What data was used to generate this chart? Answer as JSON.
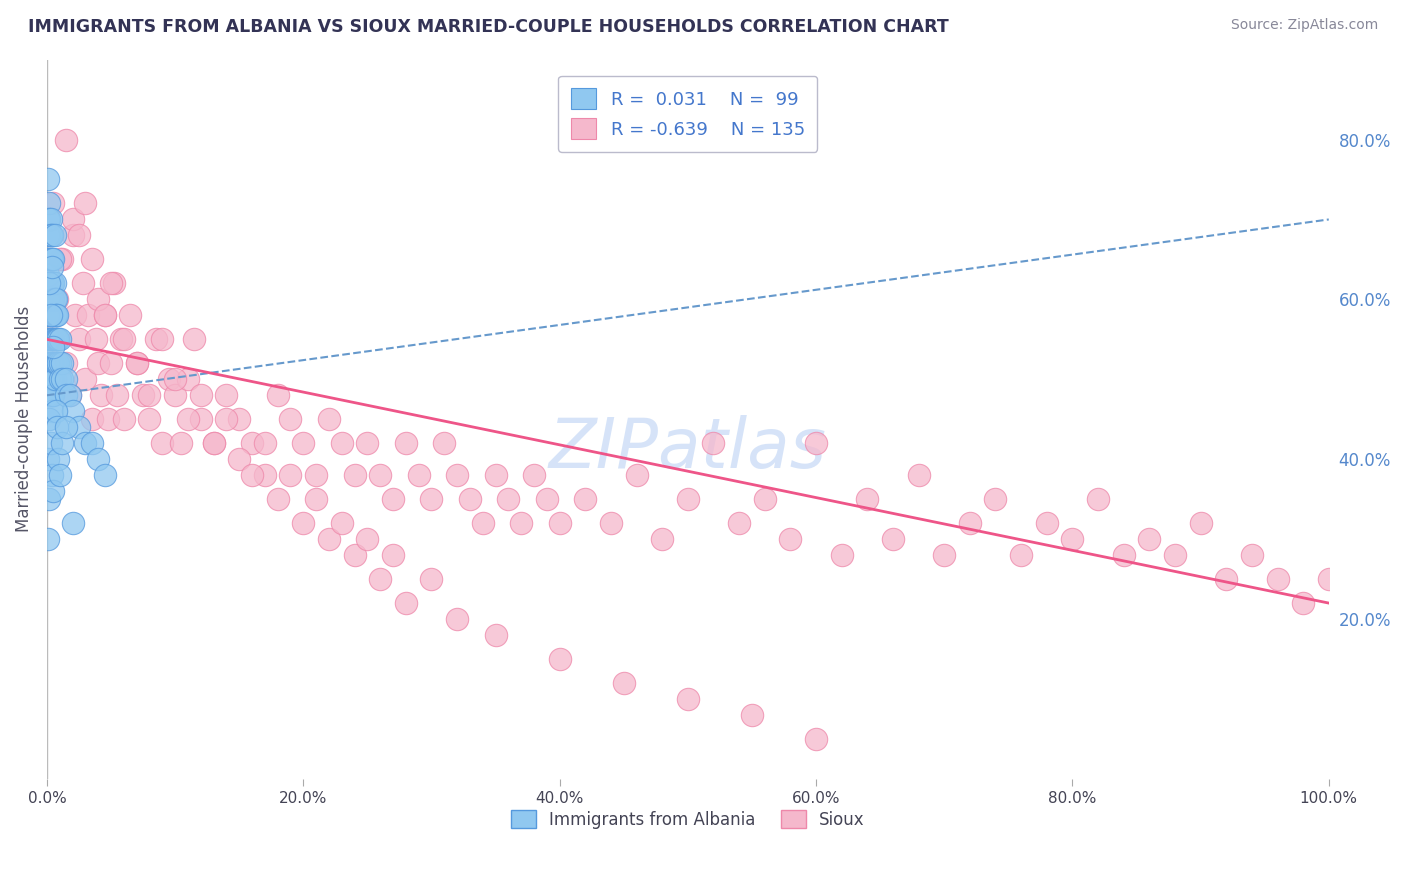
{
  "title": "IMMIGRANTS FROM ALBANIA VS SIOUX MARRIED-COUPLE HOUSEHOLDS CORRELATION CHART",
  "source": "Source: ZipAtlas.com",
  "ylabel": "Married-couple Households",
  "xlim": [
    0,
    1.0
  ],
  "ylim": [
    0,
    0.9
  ],
  "xticks": [
    0,
    0.2,
    0.4,
    0.6,
    0.8,
    1.0
  ],
  "xtick_labels": [
    "0.0%",
    "20.0%",
    "40.0%",
    "60.0%",
    "80.0%",
    "100.0%"
  ],
  "yticks_right": [
    0.2,
    0.4,
    0.6,
    0.8
  ],
  "ytick_labels_right": [
    "20.0%",
    "40.0%",
    "60.0%",
    "80.0%"
  ],
  "blue_color": "#90C8F0",
  "pink_color": "#F5B8CC",
  "blue_edge_color": "#5599DD",
  "pink_edge_color": "#EE88AA",
  "blue_line_color": "#6699CC",
  "pink_line_color": "#EE5588",
  "background_color": "#FFFFFF",
  "grid_color": "#CCCCCC",
  "title_color": "#333355",
  "axis_label_color": "#555566",
  "tick_color_right": "#5588CC",
  "legend_text_color": "#4477CC",
  "watermark_color": "#99BBEE",
  "albania_x": [
    0.001,
    0.001,
    0.001,
    0.001,
    0.001,
    0.001,
    0.001,
    0.001,
    0.001,
    0.001,
    0.002,
    0.002,
    0.002,
    0.002,
    0.002,
    0.002,
    0.002,
    0.002,
    0.002,
    0.002,
    0.003,
    0.003,
    0.003,
    0.003,
    0.003,
    0.003,
    0.003,
    0.003,
    0.003,
    0.003,
    0.004,
    0.004,
    0.004,
    0.004,
    0.004,
    0.004,
    0.004,
    0.004,
    0.004,
    0.004,
    0.005,
    0.005,
    0.005,
    0.005,
    0.005,
    0.005,
    0.005,
    0.005,
    0.006,
    0.006,
    0.006,
    0.006,
    0.006,
    0.006,
    0.007,
    0.007,
    0.007,
    0.007,
    0.008,
    0.008,
    0.008,
    0.009,
    0.009,
    0.01,
    0.01,
    0.01,
    0.012,
    0.012,
    0.015,
    0.015,
    0.018,
    0.02,
    0.025,
    0.03,
    0.035,
    0.04,
    0.045,
    0.001,
    0.001,
    0.001,
    0.002,
    0.002,
    0.002,
    0.003,
    0.003,
    0.004,
    0.004,
    0.005,
    0.005,
    0.006,
    0.007,
    0.008,
    0.009,
    0.01,
    0.012,
    0.015,
    0.02
  ],
  "albania_y": [
    0.7,
    0.68,
    0.65,
    0.63,
    0.6,
    0.58,
    0.55,
    0.52,
    0.5,
    0.48,
    0.72,
    0.7,
    0.68,
    0.65,
    0.62,
    0.6,
    0.58,
    0.55,
    0.52,
    0.48,
    0.7,
    0.68,
    0.65,
    0.62,
    0.6,
    0.58,
    0.55,
    0.52,
    0.5,
    0.48,
    0.68,
    0.65,
    0.62,
    0.6,
    0.58,
    0.55,
    0.52,
    0.5,
    0.48,
    0.46,
    0.65,
    0.62,
    0.6,
    0.58,
    0.55,
    0.52,
    0.5,
    0.48,
    0.62,
    0.6,
    0.58,
    0.55,
    0.52,
    0.5,
    0.6,
    0.58,
    0.55,
    0.52,
    0.58,
    0.55,
    0.52,
    0.55,
    0.52,
    0.55,
    0.52,
    0.5,
    0.52,
    0.5,
    0.5,
    0.48,
    0.48,
    0.46,
    0.44,
    0.42,
    0.42,
    0.4,
    0.38,
    0.3,
    0.4,
    0.75,
    0.45,
    0.35,
    0.62,
    0.42,
    0.58,
    0.38,
    0.64,
    0.36,
    0.54,
    0.68,
    0.46,
    0.44,
    0.4,
    0.38,
    0.42,
    0.44,
    0.32
  ],
  "sioux_x": [
    0.002,
    0.003,
    0.005,
    0.008,
    0.01,
    0.012,
    0.015,
    0.018,
    0.02,
    0.022,
    0.025,
    0.028,
    0.03,
    0.032,
    0.035,
    0.038,
    0.04,
    0.042,
    0.045,
    0.048,
    0.05,
    0.052,
    0.055,
    0.058,
    0.06,
    0.065,
    0.07,
    0.075,
    0.08,
    0.085,
    0.09,
    0.095,
    0.1,
    0.105,
    0.11,
    0.115,
    0.12,
    0.13,
    0.14,
    0.15,
    0.16,
    0.17,
    0.18,
    0.19,
    0.2,
    0.21,
    0.22,
    0.23,
    0.24,
    0.25,
    0.26,
    0.27,
    0.28,
    0.29,
    0.3,
    0.31,
    0.32,
    0.33,
    0.34,
    0.35,
    0.36,
    0.37,
    0.38,
    0.39,
    0.4,
    0.42,
    0.44,
    0.46,
    0.48,
    0.5,
    0.52,
    0.54,
    0.56,
    0.58,
    0.6,
    0.62,
    0.64,
    0.66,
    0.68,
    0.7,
    0.72,
    0.74,
    0.76,
    0.78,
    0.8,
    0.82,
    0.84,
    0.86,
    0.88,
    0.9,
    0.92,
    0.94,
    0.96,
    0.98,
    1.0,
    0.005,
    0.01,
    0.015,
    0.02,
    0.025,
    0.03,
    0.035,
    0.04,
    0.045,
    0.05,
    0.06,
    0.07,
    0.08,
    0.09,
    0.1,
    0.11,
    0.12,
    0.13,
    0.14,
    0.15,
    0.16,
    0.17,
    0.18,
    0.19,
    0.2,
    0.21,
    0.22,
    0.23,
    0.24,
    0.25,
    0.26,
    0.27,
    0.28,
    0.3,
    0.32,
    0.35,
    0.4,
    0.45,
    0.5,
    0.55,
    0.6
  ],
  "sioux_y": [
    0.58,
    0.62,
    0.55,
    0.6,
    0.5,
    0.65,
    0.52,
    0.48,
    0.68,
    0.58,
    0.55,
    0.62,
    0.5,
    0.58,
    0.45,
    0.55,
    0.52,
    0.48,
    0.58,
    0.45,
    0.52,
    0.62,
    0.48,
    0.55,
    0.45,
    0.58,
    0.52,
    0.48,
    0.45,
    0.55,
    0.42,
    0.5,
    0.48,
    0.42,
    0.5,
    0.55,
    0.45,
    0.42,
    0.48,
    0.45,
    0.42,
    0.38,
    0.48,
    0.45,
    0.42,
    0.38,
    0.45,
    0.42,
    0.38,
    0.42,
    0.38,
    0.35,
    0.42,
    0.38,
    0.35,
    0.42,
    0.38,
    0.35,
    0.32,
    0.38,
    0.35,
    0.32,
    0.38,
    0.35,
    0.32,
    0.35,
    0.32,
    0.38,
    0.3,
    0.35,
    0.42,
    0.32,
    0.35,
    0.3,
    0.42,
    0.28,
    0.35,
    0.3,
    0.38,
    0.28,
    0.32,
    0.35,
    0.28,
    0.32,
    0.3,
    0.35,
    0.28,
    0.3,
    0.28,
    0.32,
    0.25,
    0.28,
    0.25,
    0.22,
    0.25,
    0.72,
    0.65,
    0.8,
    0.7,
    0.68,
    0.72,
    0.65,
    0.6,
    0.58,
    0.62,
    0.55,
    0.52,
    0.48,
    0.55,
    0.5,
    0.45,
    0.48,
    0.42,
    0.45,
    0.4,
    0.38,
    0.42,
    0.35,
    0.38,
    0.32,
    0.35,
    0.3,
    0.32,
    0.28,
    0.3,
    0.25,
    0.28,
    0.22,
    0.25,
    0.2,
    0.18,
    0.15,
    0.12,
    0.1,
    0.08,
    0.05
  ]
}
